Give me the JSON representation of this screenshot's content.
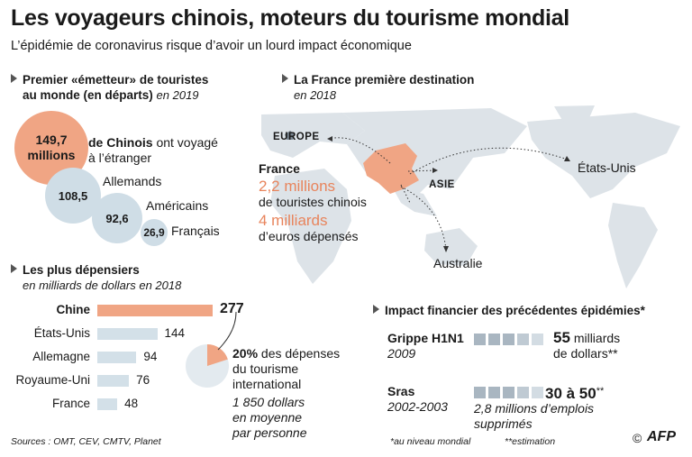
{
  "title": "Les voyageurs chinois, moteurs du tourisme mondial",
  "subtitle": "L’épidémie de coronavirus risque d’avoir un lourd impact économique",
  "colors": {
    "accent": "#f0a584",
    "accent_text": "#e8845c",
    "neutral": "#cfdde6",
    "map_land": "#dde3e8"
  },
  "emitters": {
    "heading_line1": "Premier «émetteur» de touristes",
    "heading_line2": "au monde (en départs)",
    "year": "en 2019",
    "china_value": "149,7",
    "china_unit": "millions",
    "china_label_bold": "de Chinois",
    "china_label_rest": "ont voyagé",
    "china_label_line2": "à l’étranger",
    "germany_value": "108,5",
    "germany_label": "Allemands",
    "usa_value": "92,6",
    "usa_label": "Américains",
    "france_value": "26,9",
    "france_label": "Français"
  },
  "france_dest": {
    "heading": "La France première destination",
    "year": "en 2018",
    "europe_label": "Europe",
    "asie_label": "Asie",
    "usa_label": "États-Unis",
    "australia_label": "Australie",
    "france_label": "France",
    "tourists_value": "2,2 millions",
    "tourists_label": "de touristes chinois",
    "spend_value": "4 milliards",
    "spend_label": "d’euros dépensés"
  },
  "spenders": {
    "heading": "Les plus dépensiers",
    "sub": "en milliards de dollars en 2018",
    "share_value": "20%",
    "share_rest": "des dépenses",
    "share_line2": "du tourisme",
    "share_line3": "international",
    "avg_line1": "1 850 dollars",
    "avg_line2": "en moyenne",
    "avg_line3": "par personne"
  },
  "chart_data": {
    "type": "bar",
    "orientation": "horizontal",
    "categories": [
      "Chine",
      "États-Unis",
      "Allemagne",
      "Royaume-Uni",
      "France"
    ],
    "values": [
      277,
      144,
      94,
      76,
      48
    ],
    "value_labels": [
      "277",
      "144",
      "94",
      "76",
      "48"
    ],
    "highlight": "Chine",
    "pie_share_percent": 20
  },
  "impact": {
    "heading": "Impact financier des précédentes épidémies*",
    "grippe_name": "Grippe H1N1",
    "grippe_year": "2009",
    "grippe_value": "55",
    "grippe_unit": "milliards",
    "grippe_unit2": "de dollars**",
    "grippe_squares": 5,
    "sras_name": "Sras",
    "sras_years": "2002-2003",
    "sras_value": "30 à 50",
    "sras_stars": "**",
    "sras_jobs1": "2,8 millions d’emplois",
    "sras_jobs2": "supprimés",
    "sras_squares": 5
  },
  "footer": {
    "sources": "Sources : OMT, CEV, CMTV, Planet",
    "note1": "*au niveau mondial",
    "note2": "**estimation",
    "copyright": "©",
    "logo": "AFP"
  }
}
